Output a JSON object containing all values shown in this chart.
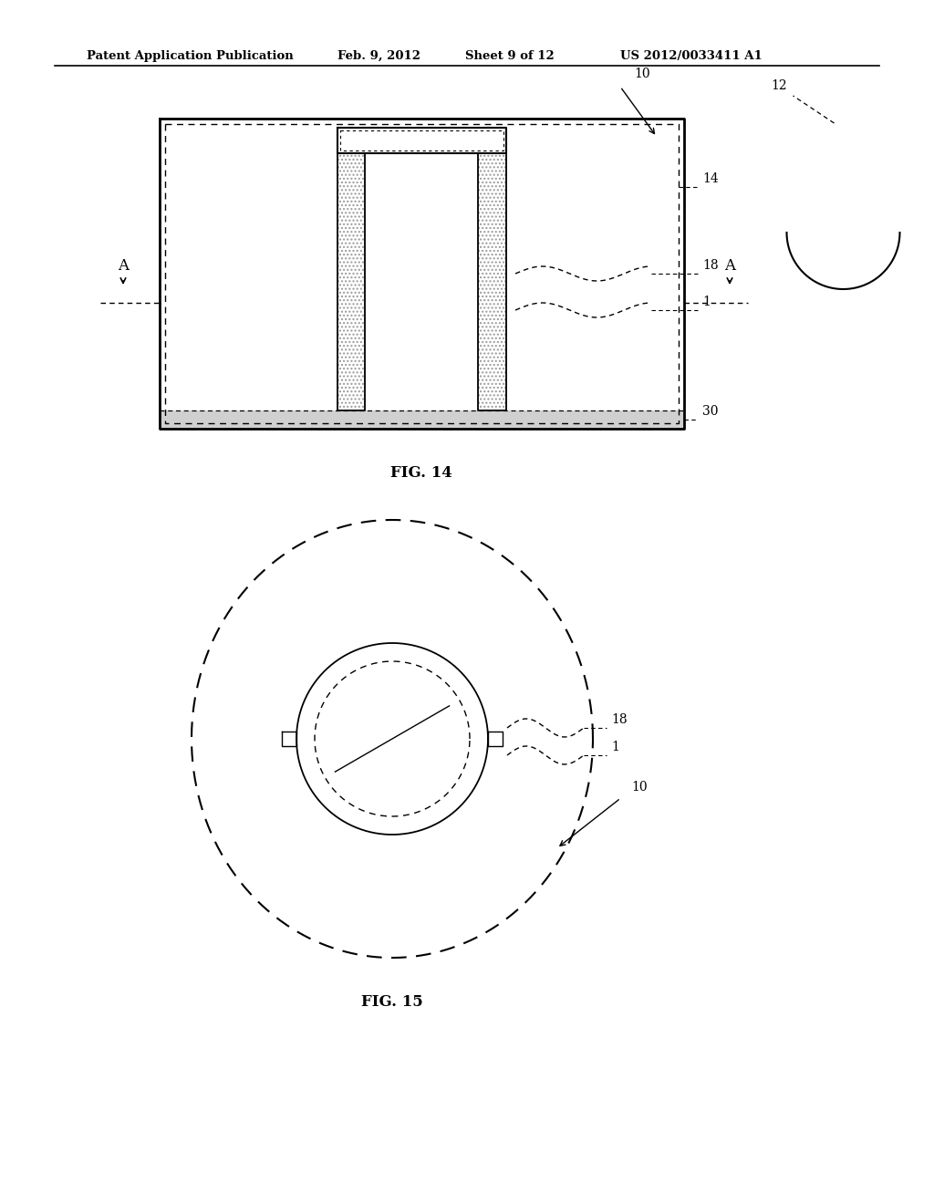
{
  "bg_color": "#ffffff",
  "header_text": "Patent Application Publication",
  "header_date": "Feb. 9, 2012",
  "header_sheet": "Sheet 9 of 12",
  "header_patent": "US 2012/0033411 A1",
  "fig14_label": "FIG. 14",
  "fig15_label": "FIG. 15"
}
